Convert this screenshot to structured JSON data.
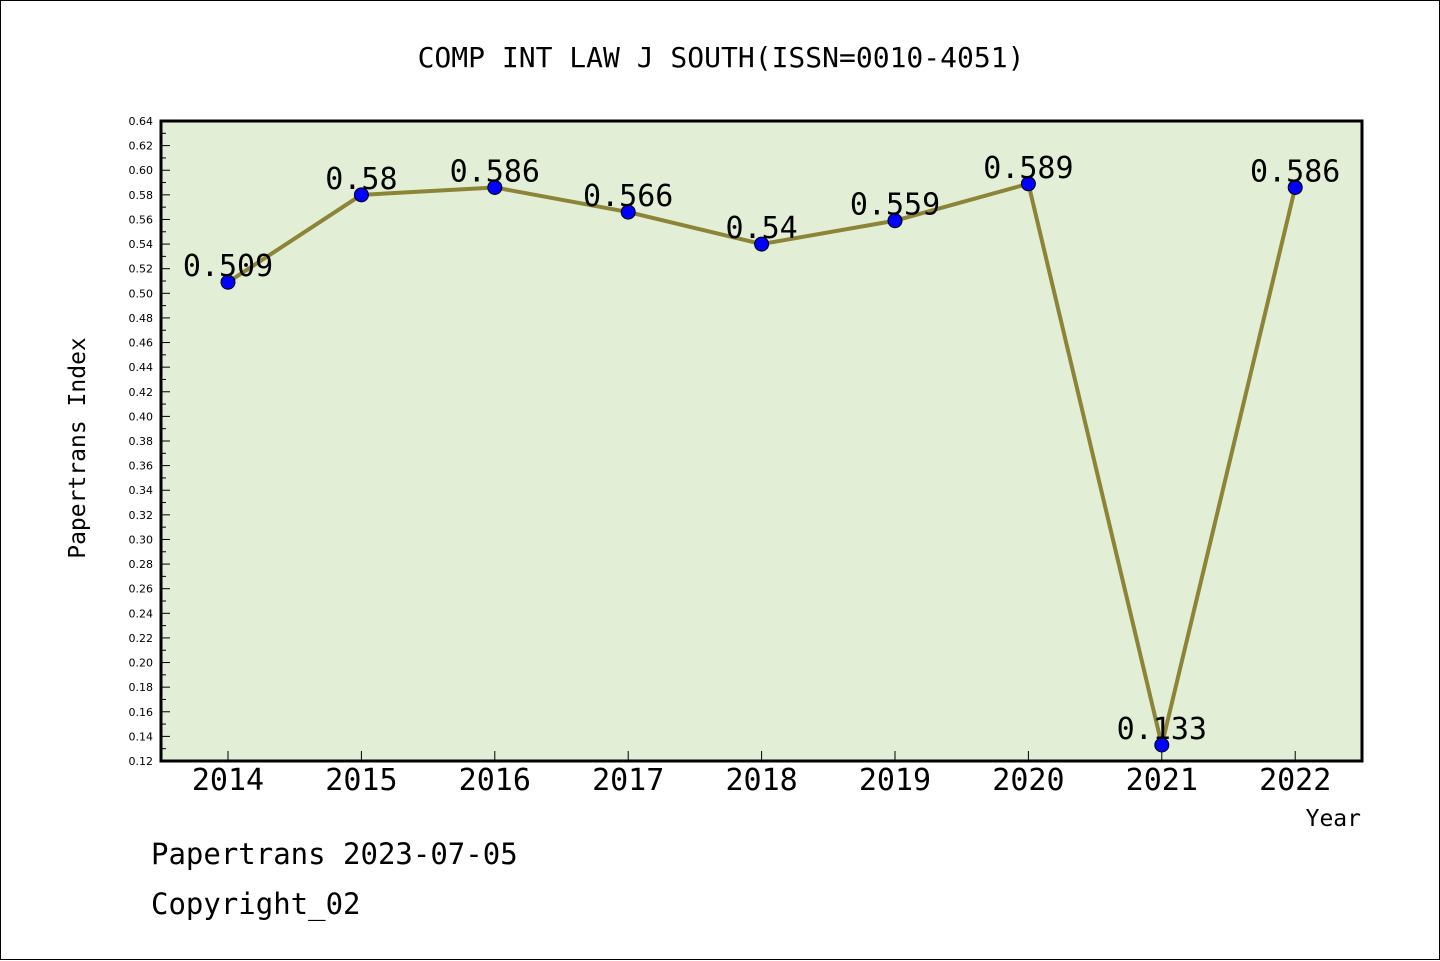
{
  "chart_data": {
    "type": "line",
    "title": "COMP INT LAW J SOUTH(ISSN=0010-4051)",
    "xlabel": "Year",
    "ylabel": "Papertrans Index",
    "categories": [
      "2014",
      "2015",
      "2016",
      "2017",
      "2018",
      "2019",
      "2020",
      "2021",
      "2022"
    ],
    "values": [
      0.509,
      0.58,
      0.586,
      0.566,
      0.54,
      0.559,
      0.589,
      0.133,
      0.586
    ],
    "data_labels": [
      "0.509",
      "0.58",
      "0.586",
      "0.566",
      "0.54",
      "0.559",
      "0.589",
      "0.133",
      "0.586"
    ],
    "ylim": [
      0.12,
      0.64
    ],
    "y_ticks": [
      "0.12",
      "0.14",
      "0.16",
      "0.18",
      "0.20",
      "0.22",
      "0.24",
      "0.26",
      "0.28",
      "0.30",
      "0.32",
      "0.34",
      "0.36",
      "0.38",
      "0.40",
      "0.42",
      "0.44",
      "0.46",
      "0.48",
      "0.50",
      "0.52",
      "0.54",
      "0.56",
      "0.58",
      "0.60",
      "0.62",
      "0.64"
    ],
    "grid": false,
    "legend": "none",
    "colors": {
      "plot_background": "#e2efd6",
      "line": "#8c8436",
      "marker": "#0000ff"
    }
  },
  "footer": {
    "date_line": "Papertrans 2023-07-05",
    "copyright": "Copyright_02"
  }
}
